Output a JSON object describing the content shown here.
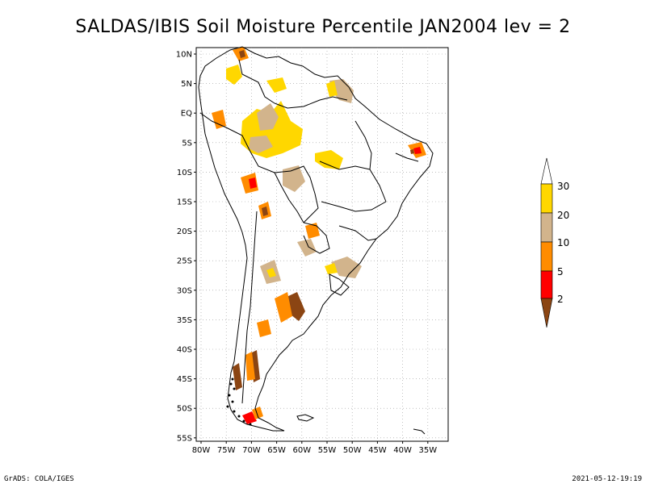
{
  "title": "SALDAS/IBIS Soil Moisture Percentile JAN2004 lev = 2",
  "footer": {
    "left": "GrADS: COLA/IGES",
    "right": "2021-05-12-19:19"
  },
  "axes": {
    "lat_labels": [
      "10N",
      "5N",
      "EQ",
      "5S",
      "10S",
      "15S",
      "20S",
      "25S",
      "30S",
      "35S",
      "40S",
      "45S",
      "50S",
      "55S"
    ],
    "lon_labels": [
      "80W",
      "75W",
      "70W",
      "65W",
      "60W",
      "55W",
      "50W",
      "45W",
      "40W",
      "35W"
    ]
  },
  "colorbar": {
    "labels": [
      "2",
      "5",
      "10",
      "20",
      "30"
    ],
    "colors": [
      "#8B4513",
      "#FF0000",
      "#FF8C00",
      "#D2B48C",
      "#FFD700",
      "#FFFFFF"
    ]
  },
  "colors": {
    "gold": "#FFD700",
    "tan": "#D2B48C",
    "orange": "#FF8C00",
    "red": "#FF0000",
    "brown": "#8B4513"
  }
}
